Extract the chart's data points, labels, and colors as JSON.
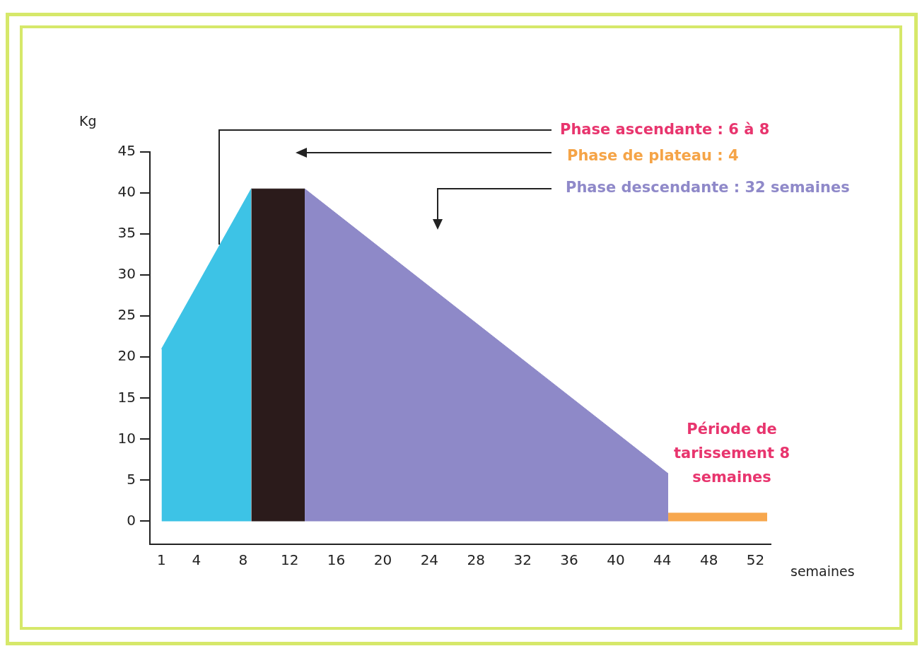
{
  "chart_data": {
    "type": "area",
    "xlabel": "semaines",
    "ylabel": "Kg",
    "series": [
      {
        "color": "#3dc3e6",
        "x": [
          1,
          8.7
        ],
        "values": [
          21,
          40.5
        ]
      },
      {
        "color": "#2b1b1b",
        "x": [
          8.7,
          13.3
        ],
        "values": [
          40.5,
          40.5
        ]
      },
      {
        "color": "#8e89c8",
        "x": [
          13.3,
          44.5
        ],
        "values": [
          40.5,
          5.8
        ]
      },
      {
        "color": "#f7a74e",
        "x": [
          44.5,
          53
        ],
        "values": [
          1,
          1
        ]
      }
    ],
    "xlim": [
      0,
      53.3
    ],
    "xticks": [
      1,
      4,
      8,
      12,
      16,
      20,
      24,
      28,
      32,
      36,
      40,
      44,
      48,
      52
    ],
    "ylim": [
      -2.8,
      45
    ],
    "yticks": [
      0,
      5,
      10,
      15,
      20,
      25,
      30,
      35,
      40,
      45
    ],
    "grid": false,
    "annotations": [
      "Phase ascendante : 6 à 8",
      "Phase de plateau : 4",
      "Phase descendante : 32 semaines",
      "Période de tarissement 8 semaines"
    ]
  }
}
